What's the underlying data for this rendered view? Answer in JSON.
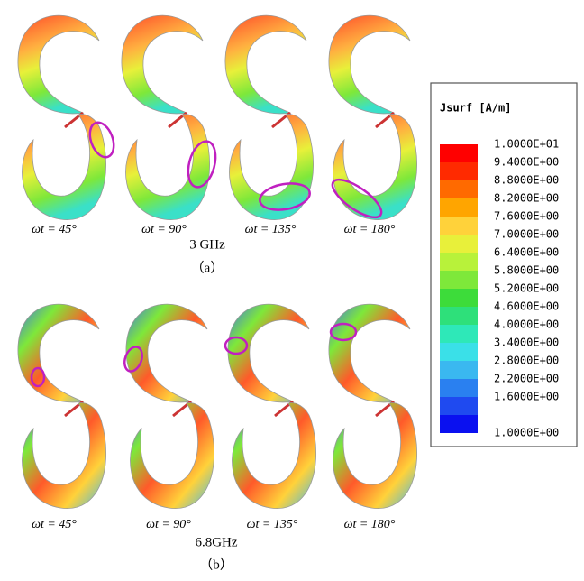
{
  "panel_a": {
    "labels": [
      "ωt = 45°",
      "ωt = 90°",
      "ωt = 135°",
      "ωt = 180°"
    ],
    "frequency": "3 GHz",
    "caption": "（a）"
  },
  "panel_b": {
    "labels": [
      "ωt = 45°",
      "ωt = 90°",
      "ωt = 135°",
      "ωt = 180°"
    ],
    "frequency": "6.8GHz",
    "caption": "（b）"
  },
  "legend": {
    "title": "Jsurf [A/m]",
    "entries": [
      {
        "label": "1.0000E+01",
        "color": "#ff0000"
      },
      {
        "label": "9.4000E+00",
        "color": "#ff2a00"
      },
      {
        "label": "8.8000E+00",
        "color": "#ff6a00"
      },
      {
        "label": "8.2000E+00",
        "color": "#ffa500"
      },
      {
        "label": "7.6000E+00",
        "color": "#ffd23a"
      },
      {
        "label": "7.0000E+00",
        "color": "#e8f03a"
      },
      {
        "label": "6.4000E+00",
        "color": "#b8f23a"
      },
      {
        "label": "5.8000E+00",
        "color": "#7ee83a"
      },
      {
        "label": "5.2000E+00",
        "color": "#3ddc3a"
      },
      {
        "label": "4.6000E+00",
        "color": "#2ee07a"
      },
      {
        "label": "4.0000E+00",
        "color": "#2ee8b8"
      },
      {
        "label": "3.4000E+00",
        "color": "#3ae0e8"
      },
      {
        "label": "2.8000E+00",
        "color": "#3ab8f0"
      },
      {
        "label": "2.2000E+00",
        "color": "#2a80f0"
      },
      {
        "label": "1.6000E+00",
        "color": "#1f4af0"
      },
      {
        "label": "1.0000E+00",
        "color": "#0a10f0"
      }
    ]
  }
}
